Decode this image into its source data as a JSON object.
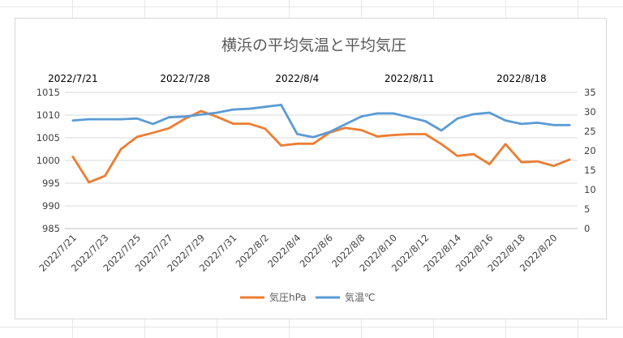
{
  "chart_data": {
    "type": "line",
    "title": "横浜の平均気温と平均気圧",
    "categories": [
      "2022/7/21",
      "2022/7/22",
      "2022/7/23",
      "2022/7/24",
      "2022/7/25",
      "2022/7/26",
      "2022/7/27",
      "2022/7/28",
      "2022/7/29",
      "2022/7/30",
      "2022/7/31",
      "2022/8/1",
      "2022/8/2",
      "2022/8/3",
      "2022/8/4",
      "2022/8/5",
      "2022/8/6",
      "2022/8/7",
      "2022/8/8",
      "2022/8/9",
      "2022/8/10",
      "2022/8/11",
      "2022/8/12",
      "2022/8/13",
      "2022/8/14",
      "2022/8/15",
      "2022/8/16",
      "2022/8/17",
      "2022/8/18",
      "2022/8/19",
      "2022/8/20",
      "2022/8/21"
    ],
    "x_tick_labels": [
      "2022/7/21",
      "2022/7/23",
      "2022/7/25",
      "2022/7/27",
      "2022/7/29",
      "2022/7/31",
      "2022/8/2",
      "2022/8/4",
      "2022/8/6",
      "2022/8/8",
      "2022/8/10",
      "2022/8/12",
      "2022/8/14",
      "2022/8/16",
      "2022/8/18",
      "2022/8/20"
    ],
    "secondary_x_tick_labels": [
      "2022/7/21",
      "2022/7/28",
      "2022/8/4",
      "2022/8/11",
      "2022/8/18"
    ],
    "series": [
      {
        "name": "気圧hPa",
        "axis": "left",
        "color": "#ed7d31",
        "values": [
          1000.8,
          995.2,
          996.6,
          1002.5,
          1005.2,
          1006.1,
          1007.1,
          1009.2,
          1010.9,
          1009.6,
          1008.1,
          1008.1,
          1007.0,
          1003.3,
          1003.7,
          1003.7,
          1006.1,
          1007.2,
          1006.7,
          1005.3,
          1005.6,
          1005.8,
          1005.8,
          1003.6,
          1001.0,
          1001.4,
          999.2,
          1003.6,
          999.6,
          999.8,
          998.8,
          1000.2
        ]
      },
      {
        "name": "気温℃",
        "axis": "right",
        "color": "#5b9bd5",
        "values": [
          27.8,
          28.1,
          28.1,
          28.1,
          28.3,
          26.9,
          28.6,
          28.8,
          29.3,
          29.8,
          30.6,
          30.8,
          31.3,
          31.8,
          24.3,
          23.5,
          24.8,
          26.8,
          28.8,
          29.6,
          29.6,
          28.6,
          27.6,
          25.2,
          28.3,
          29.4,
          29.8,
          27.8,
          26.9,
          27.2,
          26.6,
          26.6
        ]
      }
    ],
    "y_left": {
      "min": 985,
      "max": 1015,
      "step": 5,
      "ticks": [
        "985",
        "990",
        "995",
        "1000",
        "1005",
        "1010",
        "1015"
      ]
    },
    "y_right": {
      "min": 0,
      "max": 35,
      "step": 5,
      "ticks": [
        "0",
        "5",
        "10",
        "15",
        "20",
        "25",
        "30",
        "35"
      ]
    },
    "grid": true,
    "legend_position": "bottom"
  }
}
